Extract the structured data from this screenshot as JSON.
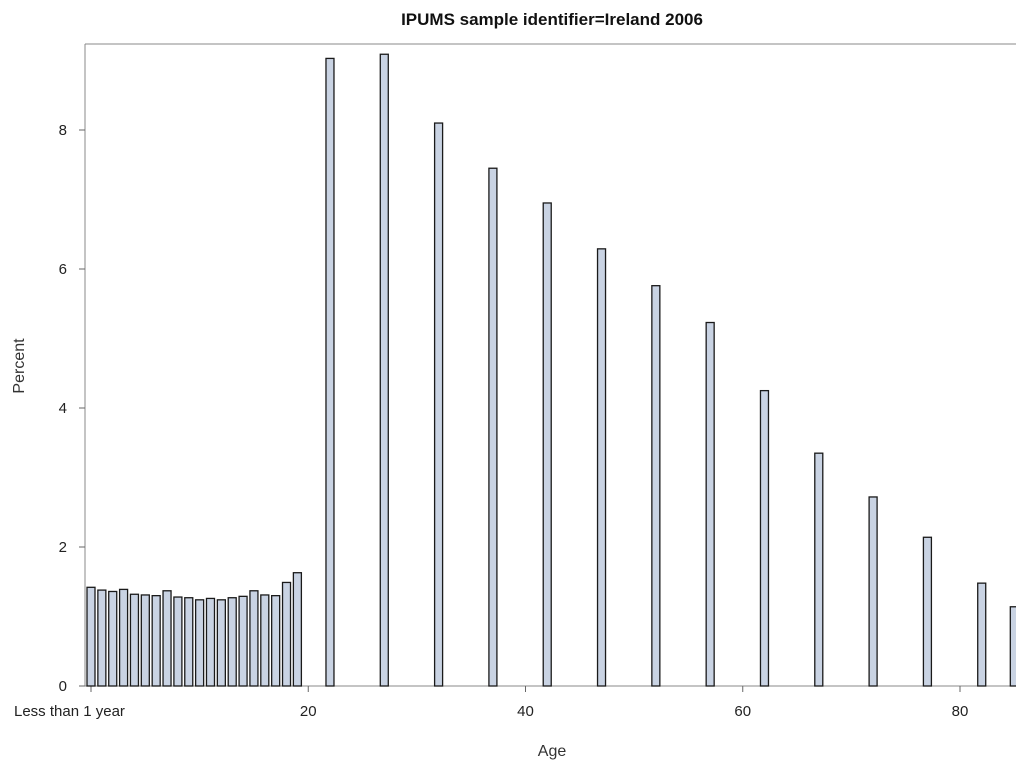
{
  "chart_data": {
    "type": "bar",
    "title": "IPUMS sample identifier=Ireland 2006",
    "xlabel": "Age",
    "ylabel": "Percent",
    "ylim": [
      0,
      9.2
    ],
    "xlim": [
      -0.5,
      85.5
    ],
    "grid": false,
    "x_ticks": [
      {
        "value": 0,
        "label": "Less than 1 year"
      },
      {
        "value": 20,
        "label": "20"
      },
      {
        "value": 40,
        "label": "40"
      },
      {
        "value": 60,
        "label": "60"
      },
      {
        "value": 80,
        "label": "80"
      }
    ],
    "y_ticks": [
      0,
      2,
      4,
      6,
      8
    ],
    "bar_color": "#c9d3e3",
    "x": [
      0,
      1,
      2,
      3,
      4,
      5,
      6,
      7,
      8,
      9,
      10,
      11,
      12,
      13,
      14,
      15,
      16,
      17,
      18,
      19,
      22,
      27,
      32,
      37,
      42,
      47,
      52,
      57,
      62,
      67,
      72,
      77,
      82,
      85
    ],
    "values": [
      1.42,
      1.38,
      1.36,
      1.39,
      1.32,
      1.31,
      1.3,
      1.37,
      1.28,
      1.27,
      1.24,
      1.26,
      1.24,
      1.27,
      1.29,
      1.37,
      1.31,
      1.3,
      1.49,
      1.63,
      9.03,
      9.09,
      8.1,
      7.45,
      6.95,
      6.29,
      5.76,
      5.23,
      4.25,
      3.35,
      2.72,
      2.14,
      1.48,
      1.14
    ]
  }
}
